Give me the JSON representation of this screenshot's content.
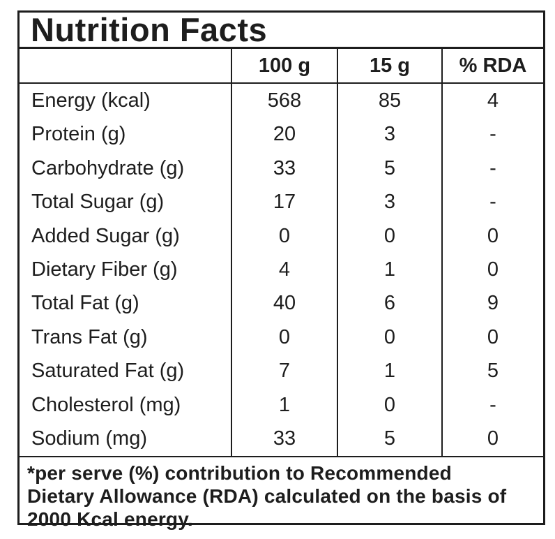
{
  "label": {
    "title": "Nutrition Facts",
    "columns": {
      "nutrient": "",
      "per100": "100 g",
      "per15": "15 g",
      "rda": "% RDA"
    },
    "rows": [
      {
        "nutrient": "Energy (kcal)",
        "per100": "568",
        "per15": "85",
        "rda": "4"
      },
      {
        "nutrient": "Protein (g)",
        "per100": "20",
        "per15": "3",
        "rda": "-"
      },
      {
        "nutrient": "Carbohydrate (g)",
        "per100": "33",
        "per15": "5",
        "rda": "-"
      },
      {
        "nutrient": "Total Sugar (g)",
        "per100": "17",
        "per15": "3",
        "rda": "-"
      },
      {
        "nutrient": "Added Sugar (g)",
        "per100": "0",
        "per15": "0",
        "rda": "0"
      },
      {
        "nutrient": "Dietary Fiber (g)",
        "per100": "4",
        "per15": "1",
        "rda": "0"
      },
      {
        "nutrient": "Total Fat (g)",
        "per100": "40",
        "per15": "6",
        "rda": "9"
      },
      {
        "nutrient": "Trans Fat (g)",
        "per100": "0",
        "per15": "0",
        "rda": "0"
      },
      {
        "nutrient": "Saturated Fat (g)",
        "per100": "7",
        "per15": "1",
        "rda": "5"
      },
      {
        "nutrient": "Cholesterol (mg)",
        "per100": "1",
        "per15": "0",
        "rda": "-"
      },
      {
        "nutrient": "Sodium (mg)",
        "per100": "33",
        "per15": "5",
        "rda": "0"
      }
    ],
    "footnote": "*per serve (%) contribution to Recommended Dietary Allowance (RDA) calculated on the basis of 2000 Kcal energy.",
    "colors": {
      "text": "#1d1d1d",
      "border": "#1d1d1d",
      "background": "#ffffff"
    }
  },
  "chart_data": {
    "type": "table",
    "title": "Nutrition Facts",
    "columns": [
      "",
      "100 g",
      "15 g",
      "% RDA"
    ],
    "rows": [
      [
        "Energy (kcal)",
        "568",
        "85",
        "4"
      ],
      [
        "Protein (g)",
        "20",
        "3",
        "-"
      ],
      [
        "Carbohydrate (g)",
        "33",
        "5",
        "-"
      ],
      [
        "Total Sugar (g)",
        "17",
        "3",
        "-"
      ],
      [
        "Added Sugar (g)",
        "0",
        "0",
        "0"
      ],
      [
        "Dietary Fiber (g)",
        "4",
        "1",
        "0"
      ],
      [
        "Total Fat (g)",
        "40",
        "6",
        "9"
      ],
      [
        "Trans Fat (g)",
        "0",
        "0",
        "0"
      ],
      [
        "Saturated Fat (g)",
        "7",
        "1",
        "5"
      ],
      [
        "Cholesterol (mg)",
        "1",
        "0",
        "-"
      ],
      [
        "Sodium (mg)",
        "33",
        "5",
        "0"
      ]
    ],
    "footnote": "*per serve (%) contribution to Recommended Dietary Allowance (RDA) calculated on the basis of 2000 Kcal energy."
  }
}
